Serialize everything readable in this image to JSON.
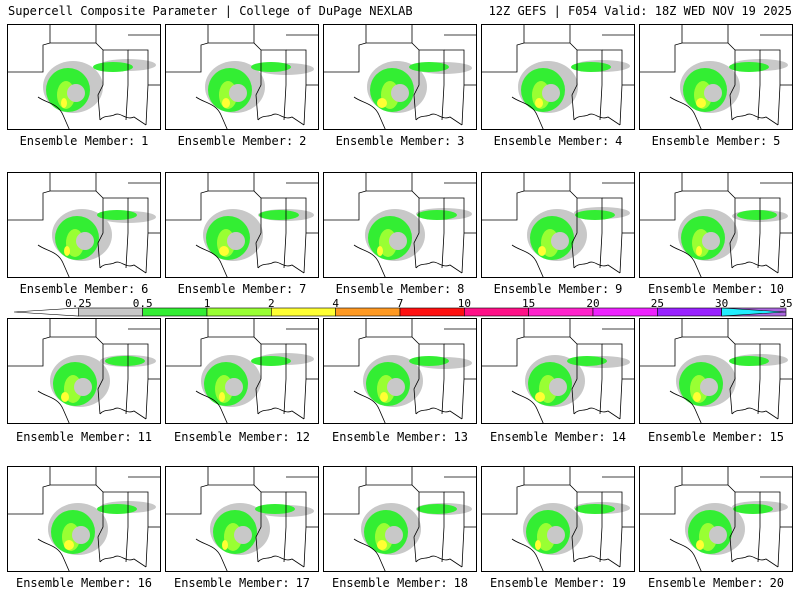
{
  "header": {
    "left_title": "Supercell Composite Parameter | College of DuPage NEXLAB",
    "right_title": "12Z GEFS | F054 Valid: 18Z WED NOV 19 2025"
  },
  "panel_label_prefix": "Ensemble Member:",
  "members": [
    "1",
    "2",
    "3",
    "4",
    "5",
    "6",
    "7",
    "8",
    "9",
    "10",
    "11",
    "12",
    "13",
    "14",
    "15",
    "16",
    "17",
    "18",
    "19",
    "20"
  ],
  "colorbar": {
    "thresholds": [
      "0.25",
      "0.5",
      "1",
      "2",
      "4",
      "7",
      "10",
      "15",
      "20",
      "25",
      "30",
      "35"
    ],
    "colors": [
      "#ffffff",
      "#c8c8c8",
      "#33ee33",
      "#99ff33",
      "#ffff33",
      "#ff9922",
      "#ff1111",
      "#ff1188",
      "#ff22cc",
      "#ee22ff",
      "#9922ff",
      "#aa66dd",
      "#22eeff"
    ]
  },
  "map_colors": {
    "light": "#c8c8c8",
    "green": "#33ee33",
    "lime": "#99ff33",
    "yellow": "#ffff33",
    "border": "#000000"
  }
}
